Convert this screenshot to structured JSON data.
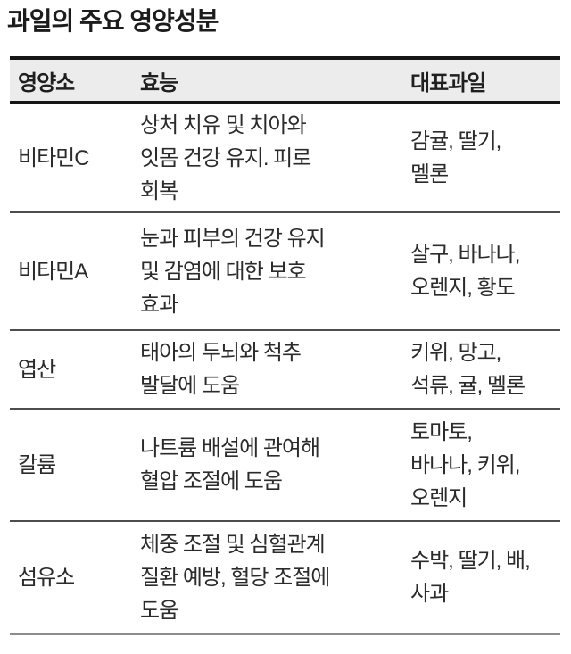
{
  "title": "과일의 주요 영양성분",
  "table": {
    "headers": [
      "영양소",
      "효능",
      "대표과일"
    ],
    "rows": [
      {
        "nutrient": "비타민C",
        "effect": "상처 치유 및 치아와\n잇몸 건강 유지. 피로\n회복",
        "fruits": "감귤, 딸기,\n멜론"
      },
      {
        "nutrient": "비타민A",
        "effect": "눈과 피부의 건강 유지\n및 감염에 대한 보호\n효과",
        "fruits": "살구, 바나나,\n오렌지, 황도"
      },
      {
        "nutrient": "엽산",
        "effect": "태아의 두뇌와 척추\n발달에 도움",
        "fruits": "키위, 망고,\n석류, 귤, 멜론"
      },
      {
        "nutrient": "칼륨",
        "effect": "나트륨 배설에 관여해\n혈압 조절에 도움",
        "fruits": "토마토,\n바나나, 키위,\n오렌지"
      },
      {
        "nutrient": "섬유소",
        "effect": "체중 조절 및 심혈관계\n질환 예방, 혈당 조절에\n도움",
        "fruits": "수박, 딸기, 배,\n사과"
      }
    ]
  },
  "colors": {
    "header_background": "#ececec",
    "header_border": "#161616",
    "row_separator": "#4d4d4d",
    "bottom_rule": "#8c8c8c",
    "text": "#2b2b2b",
    "title_text": "#1c1c1c",
    "page_background": "#ffffff"
  },
  "chart_data": {
    "type": "table",
    "title": "과일의 주요 영양성분",
    "columns": [
      "영양소",
      "효능",
      "대표과일"
    ],
    "rows": [
      [
        "비타민C",
        "상처 치유 및 치아와 잇몸 건강 유지. 피로 회복",
        "감귤, 딸기, 멜론"
      ],
      [
        "비타민A",
        "눈과 피부의 건강 유지 및 감염에 대한 보호 효과",
        "살구, 바나나, 오렌지, 황도"
      ],
      [
        "엽산",
        "태아의 두뇌와 척추 발달에 도움",
        "키위, 망고, 석류, 귤, 멜론"
      ],
      [
        "칼륨",
        "나트륨 배설에 관여해 혈압 조절에 도움",
        "토마토, 바나나, 키위, 오렌지"
      ],
      [
        "섬유소",
        "체중 조절 및 심혈관계 질환 예방, 혈당 조절에 도움",
        "수박, 딸기, 배, 사과"
      ]
    ],
    "layout": {
      "header_style": "gray band with thick black top/bottom rules",
      "row_separators": "thin dark gray lines",
      "bottom_rule": "medium gray line",
      "grid": "horizontal rules only, no vertical rules"
    }
  }
}
